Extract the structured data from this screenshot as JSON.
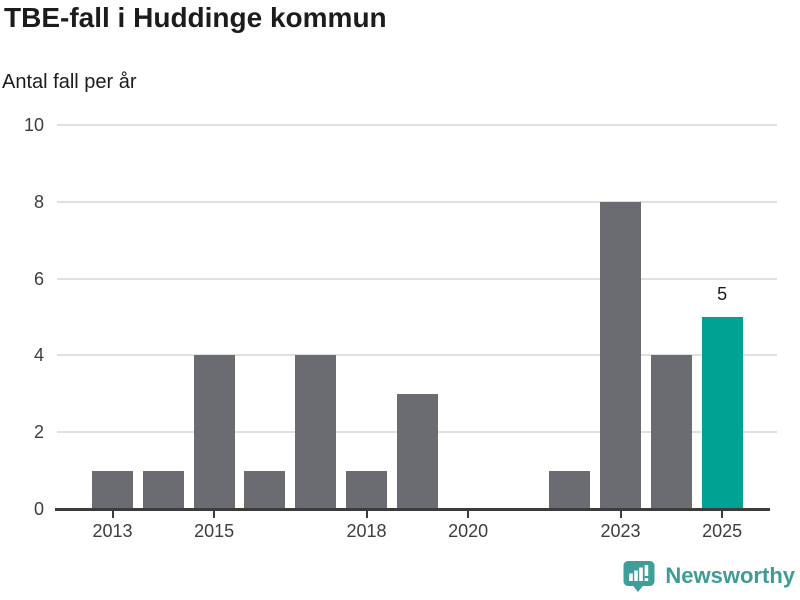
{
  "header": {
    "title": "TBE-fall i Huddinge kommun",
    "subtitle": "Antal fall per år"
  },
  "chart_data": {
    "type": "bar",
    "title": "TBE-fall i Huddinge kommun",
    "subtitle": "Antal fall per år",
    "xlabel": "",
    "ylabel": "Antal fall per år",
    "categories": [
      "2013",
      "2014",
      "2015",
      "2016",
      "2017",
      "2018",
      "2019",
      "2020",
      "2021",
      "2022",
      "2023",
      "2024",
      "2025"
    ],
    "values": [
      1,
      1,
      4,
      1,
      4,
      1,
      3,
      0,
      0,
      1,
      8,
      4,
      5
    ],
    "highlight_index": 12,
    "highlight_value_label": "5",
    "x_tick_labels": [
      "2013",
      "2015",
      "2018",
      "2020",
      "2023",
      "2025"
    ],
    "y_ticks": [
      0,
      2,
      4,
      6,
      8,
      10
    ],
    "ylim": [
      0,
      10
    ],
    "grid": "horizontal",
    "legend": "none",
    "colors": {
      "bar": "#6b6b72",
      "highlight_bar": "#00a294",
      "gridline": "#e0e0e0",
      "axis": "#3c3c3c",
      "axis_label": "#3d3d3d",
      "text": "#1c1c1a"
    }
  },
  "footer": {
    "brand": "Newsworthy",
    "brand_color": "#3d9c98",
    "logo_icon": "bar-chart-speech-bubble-icon"
  }
}
